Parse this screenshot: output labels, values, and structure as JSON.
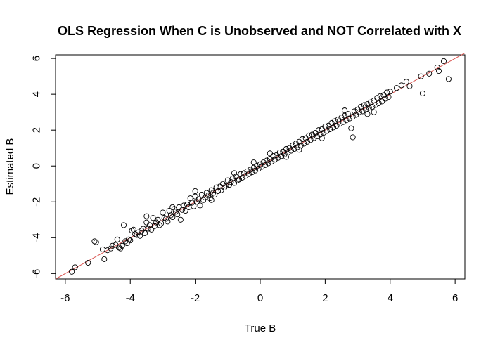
{
  "chart_data": {
    "type": "scatter",
    "title": "OLS Regression When C is Unobserved and NOT Correlated with X",
    "xlabel": "True B",
    "ylabel": "Estimated B",
    "xlim": [
      -6.3,
      6.3
    ],
    "ylim": [
      -6.3,
      6.2
    ],
    "xticks": [
      -6,
      -4,
      -2,
      0,
      2,
      4,
      6
    ],
    "yticks": [
      -6,
      -4,
      -2,
      0,
      2,
      4,
      6
    ],
    "xtick_labels": [
      "-6",
      "-4",
      "-2",
      "0",
      "2",
      "4",
      "6"
    ],
    "ytick_labels": [
      "-6",
      "-4",
      "-2",
      "0",
      "2",
      "4",
      "6"
    ],
    "grid": false,
    "legend": "none",
    "marker": "open-circle",
    "reference_line": {
      "intercept": 0,
      "slope": 1,
      "color": "#d9534f"
    },
    "points": [
      [
        -5.8,
        -5.9
      ],
      [
        -5.7,
        -5.65
      ],
      [
        -5.3,
        -5.4
      ],
      [
        -5.1,
        -4.2
      ],
      [
        -5.05,
        -4.25
      ],
      [
        -4.85,
        -4.65
      ],
      [
        -4.8,
        -5.2
      ],
      [
        -4.7,
        -4.7
      ],
      [
        -4.6,
        -4.6
      ],
      [
        -4.55,
        -4.45
      ],
      [
        -4.45,
        -4.4
      ],
      [
        -4.4,
        -4.1
      ],
      [
        -4.35,
        -4.55
      ],
      [
        -4.3,
        -4.6
      ],
      [
        -4.25,
        -4.45
      ],
      [
        -4.2,
        -3.3
      ],
      [
        -4.15,
        -4.2
      ],
      [
        -4.1,
        -4.3
      ],
      [
        -4.05,
        -4.1
      ],
      [
        -4.0,
        -4.15
      ],
      [
        -3.95,
        -3.6
      ],
      [
        -3.9,
        -3.55
      ],
      [
        -3.85,
        -3.8
      ],
      [
        -3.8,
        -3.85
      ],
      [
        -3.75,
        -3.7
      ],
      [
        -3.7,
        -3.9
      ],
      [
        -3.65,
        -3.6
      ],
      [
        -3.6,
        -3.5
      ],
      [
        -3.55,
        -3.75
      ],
      [
        -3.5,
        -2.8
      ],
      [
        -3.45,
        -3.5
      ],
      [
        -3.4,
        -3.3
      ],
      [
        -3.35,
        -3.55
      ],
      [
        -3.3,
        -2.9
      ],
      [
        -3.25,
        -3.35
      ],
      [
        -3.2,
        -3.15
      ],
      [
        -3.15,
        -3.0
      ],
      [
        -3.1,
        -3.3
      ],
      [
        -3.05,
        -3.2
      ],
      [
        -3.0,
        -2.6
      ],
      [
        -2.95,
        -2.9
      ],
      [
        -2.9,
        -2.95
      ],
      [
        -2.85,
        -3.1
      ],
      [
        -2.8,
        -2.5
      ],
      [
        -2.75,
        -2.75
      ],
      [
        -2.7,
        -2.85
      ],
      [
        -2.65,
        -2.4
      ],
      [
        -2.6,
        -2.55
      ],
      [
        -2.55,
        -2.7
      ],
      [
        -2.5,
        -2.3
      ],
      [
        -2.45,
        -3.0
      ],
      [
        -2.4,
        -2.45
      ],
      [
        -2.35,
        -2.2
      ],
      [
        -2.3,
        -2.5
      ],
      [
        -2.25,
        -2.15
      ],
      [
        -2.2,
        -2.3
      ],
      [
        -2.15,
        -1.8
      ],
      [
        -2.1,
        -2.05
      ],
      [
        -2.05,
        -2.25
      ],
      [
        -2.0,
        -1.7
      ],
      [
        -1.95,
        -2.0
      ],
      [
        -1.9,
        -1.85
      ],
      [
        -1.85,
        -2.2
      ],
      [
        -1.8,
        -1.6
      ],
      [
        -1.75,
        -1.9
      ],
      [
        -1.7,
        -1.75
      ],
      [
        -1.65,
        -1.5
      ],
      [
        -1.6,
        -1.65
      ],
      [
        -1.55,
        -1.8
      ],
      [
        -1.5,
        -1.35
      ],
      [
        -1.45,
        -1.5
      ],
      [
        -1.4,
        -1.6
      ],
      [
        -1.35,
        -1.2
      ],
      [
        -1.3,
        -1.4
      ],
      [
        -1.25,
        -1.15
      ],
      [
        -1.2,
        -1.35
      ],
      [
        -1.15,
        -1.0
      ],
      [
        -1.1,
        -1.2
      ],
      [
        -1.05,
        -1.1
      ],
      [
        -1.0,
        -0.8
      ],
      [
        -0.95,
        -1.05
      ],
      [
        -0.9,
        -0.9
      ],
      [
        -0.85,
        -0.7
      ],
      [
        -0.8,
        -0.95
      ],
      [
        -0.75,
        -0.6
      ],
      [
        -0.7,
        -0.8
      ],
      [
        -0.65,
        -0.75
      ],
      [
        -0.6,
        -0.45
      ],
      [
        -0.55,
        -0.65
      ],
      [
        -0.5,
        -0.4
      ],
      [
        -0.45,
        -0.55
      ],
      [
        -0.4,
        -0.3
      ],
      [
        -0.35,
        -0.45
      ],
      [
        -0.3,
        -0.2
      ],
      [
        -0.25,
        -0.35
      ],
      [
        -0.2,
        -0.1
      ],
      [
        -0.15,
        -0.25
      ],
      [
        -0.1,
        0.0
      ],
      [
        -0.05,
        -0.15
      ],
      [
        0.0,
        0.1
      ],
      [
        0.05,
        -0.05
      ],
      [
        0.1,
        0.2
      ],
      [
        0.15,
        0.05
      ],
      [
        0.2,
        0.3
      ],
      [
        0.25,
        0.15
      ],
      [
        0.3,
        0.4
      ],
      [
        0.35,
        0.25
      ],
      [
        0.4,
        0.55
      ],
      [
        0.45,
        0.35
      ],
      [
        0.5,
        0.6
      ],
      [
        0.55,
        0.45
      ],
      [
        0.6,
        0.75
      ],
      [
        0.65,
        0.55
      ],
      [
        0.7,
        0.8
      ],
      [
        0.75,
        0.65
      ],
      [
        0.8,
        0.95
      ],
      [
        0.85,
        0.75
      ],
      [
        0.9,
        1.0
      ],
      [
        0.95,
        0.85
      ],
      [
        1.0,
        1.15
      ],
      [
        1.05,
        0.95
      ],
      [
        1.1,
        1.25
      ],
      [
        1.15,
        1.05
      ],
      [
        1.2,
        1.35
      ],
      [
        1.25,
        1.15
      ],
      [
        1.3,
        1.5
      ],
      [
        1.35,
        1.25
      ],
      [
        1.4,
        1.55
      ],
      [
        1.45,
        1.35
      ],
      [
        1.5,
        1.7
      ],
      [
        1.55,
        1.45
      ],
      [
        1.6,
        1.75
      ],
      [
        1.65,
        1.55
      ],
      [
        1.7,
        1.85
      ],
      [
        1.75,
        1.65
      ],
      [
        1.8,
        2.0
      ],
      [
        1.85,
        1.75
      ],
      [
        1.9,
        2.05
      ],
      [
        1.95,
        1.85
      ],
      [
        2.0,
        2.2
      ],
      [
        2.05,
        1.95
      ],
      [
        2.1,
        2.25
      ],
      [
        2.15,
        2.05
      ],
      [
        2.2,
        2.4
      ],
      [
        2.25,
        2.15
      ],
      [
        2.3,
        2.5
      ],
      [
        2.35,
        2.25
      ],
      [
        2.4,
        2.6
      ],
      [
        2.45,
        2.35
      ],
      [
        2.5,
        2.7
      ],
      [
        2.55,
        2.45
      ],
      [
        2.6,
        2.8
      ],
      [
        2.65,
        2.55
      ],
      [
        2.7,
        2.9
      ],
      [
        2.75,
        2.65
      ],
      [
        2.8,
        2.1
      ],
      [
        2.85,
        2.75
      ],
      [
        2.9,
        3.05
      ],
      [
        2.95,
        2.85
      ],
      [
        3.0,
        3.15
      ],
      [
        3.05,
        3.0
      ],
      [
        3.1,
        3.3
      ],
      [
        3.15,
        3.05
      ],
      [
        3.2,
        3.4
      ],
      [
        3.25,
        3.15
      ],
      [
        3.3,
        3.45
      ],
      [
        3.35,
        3.25
      ],
      [
        3.4,
        3.55
      ],
      [
        3.45,
        3.3
      ],
      [
        3.5,
        3.65
      ],
      [
        3.55,
        3.4
      ],
      [
        3.6,
        3.8
      ],
      [
        3.65,
        3.5
      ],
      [
        3.7,
        3.9
      ],
      [
        3.75,
        3.6
      ],
      [
        3.8,
        3.95
      ],
      [
        3.85,
        3.75
      ],
      [
        3.9,
        4.1
      ],
      [
        3.95,
        3.85
      ],
      [
        4.0,
        4.15
      ],
      [
        4.2,
        4.35
      ],
      [
        4.35,
        4.5
      ],
      [
        4.5,
        4.7
      ],
      [
        4.6,
        4.45
      ],
      [
        4.95,
        5.0
      ],
      [
        5.0,
        4.05
      ],
      [
        5.2,
        5.15
      ],
      [
        5.45,
        5.5
      ],
      [
        5.5,
        5.3
      ],
      [
        5.65,
        5.85
      ],
      [
        5.8,
        4.85
      ],
      [
        2.85,
        1.6
      ],
      [
        3.5,
        3.0
      ],
      [
        -2.0,
        -1.4
      ],
      [
        -1.5,
        -1.9
      ],
      [
        1.2,
        0.9
      ],
      [
        0.3,
        0.7
      ],
      [
        -0.8,
        -0.4
      ],
      [
        2.6,
        3.1
      ],
      [
        3.3,
        2.9
      ],
      [
        -3.5,
        -3.15
      ],
      [
        -2.7,
        -2.3
      ],
      [
        1.9,
        1.55
      ],
      [
        -0.2,
        0.2
      ],
      [
        0.8,
        0.5
      ]
    ]
  }
}
